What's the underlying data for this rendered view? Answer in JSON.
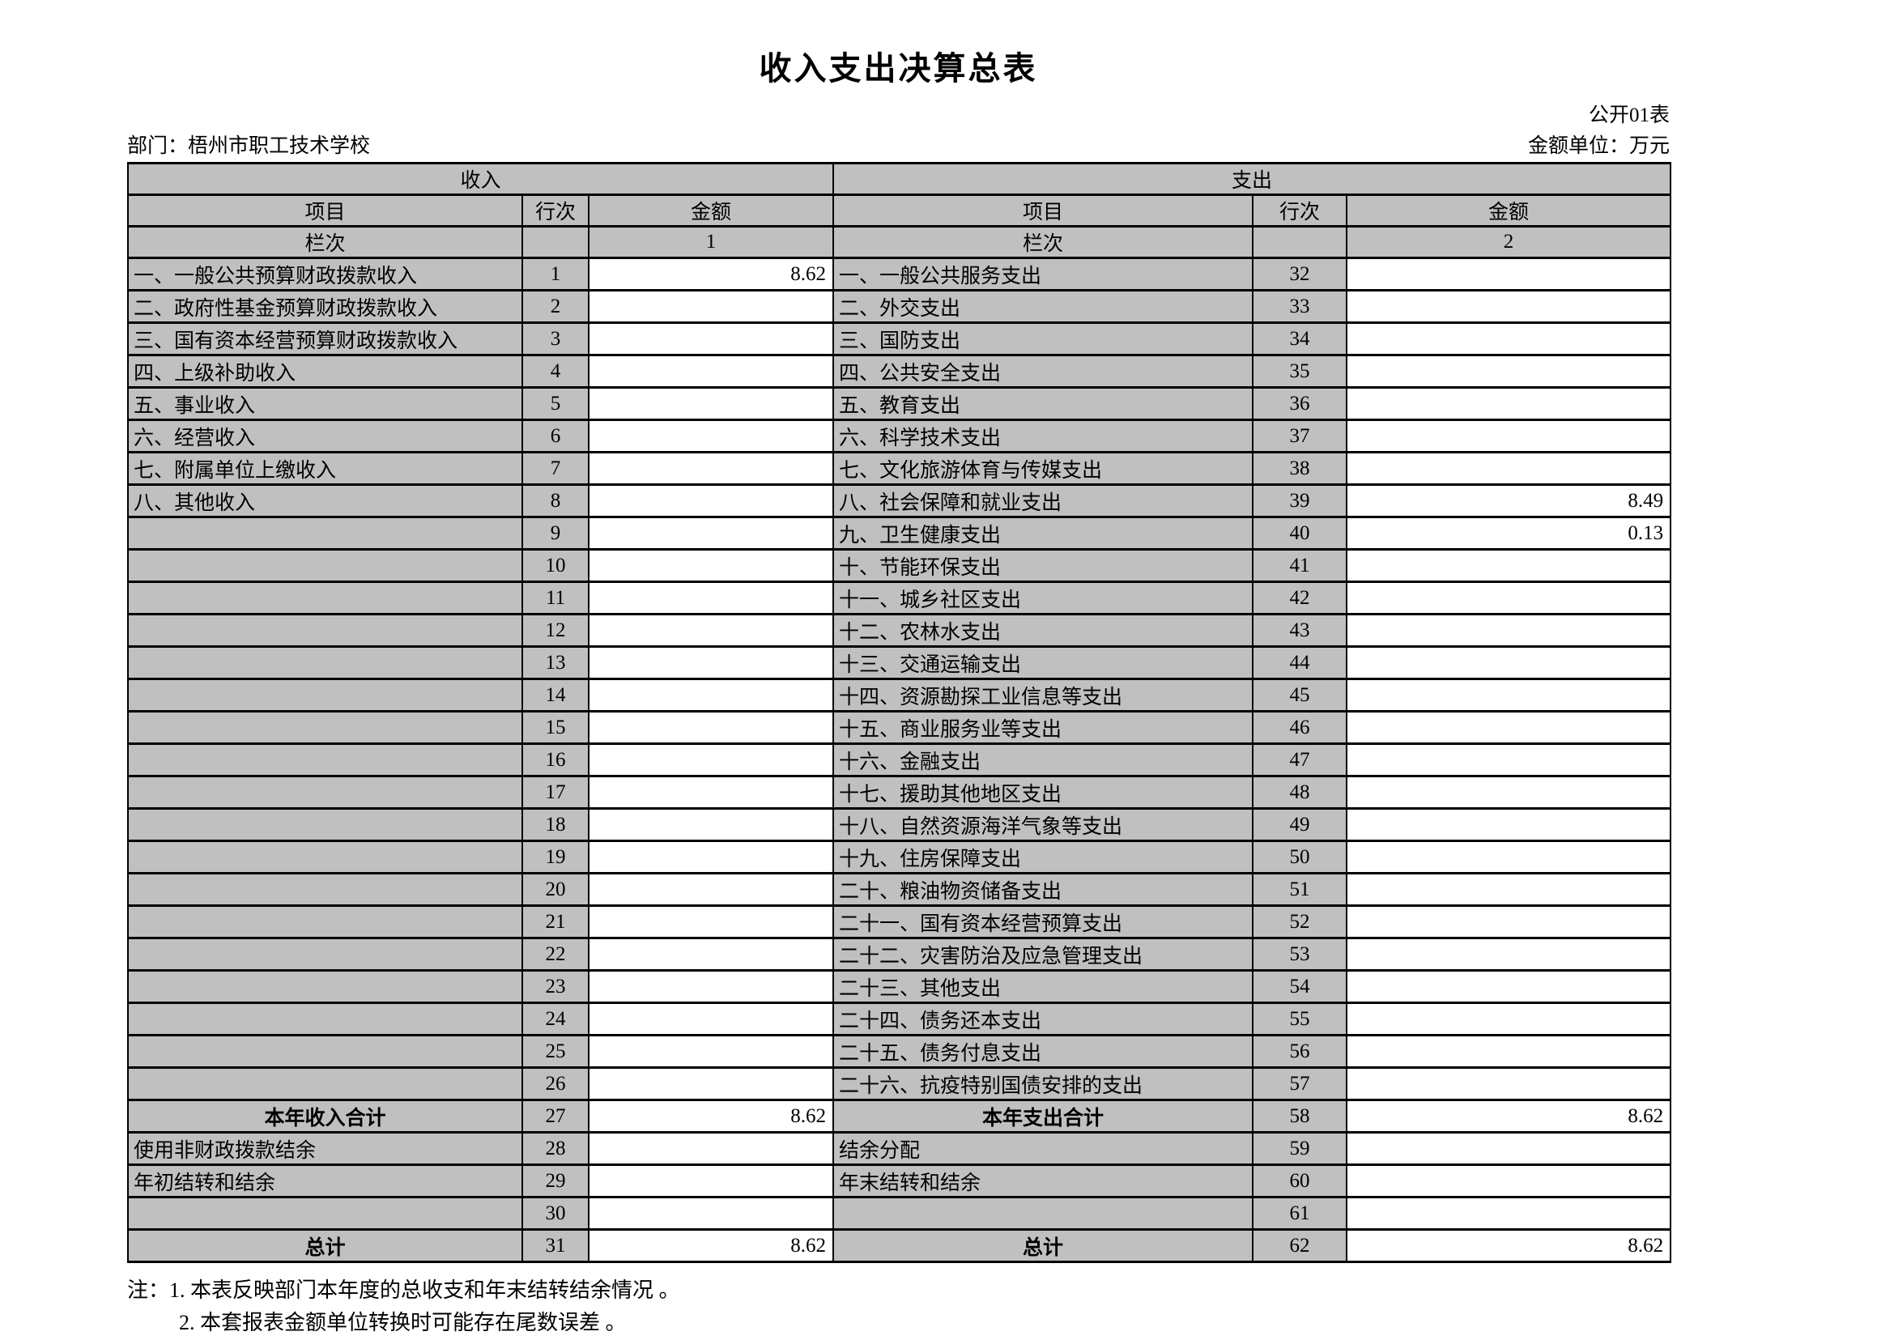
{
  "page": {
    "title": "收入支出决算总表",
    "table_code": "公开01表",
    "department_label": "部门：梧州市职工技术学校",
    "unit_label": "金额单位：万元",
    "note1": "注：1. 本表反映部门本年度的总收支和年末结转结余情况 。",
    "note2": "2. 本套报表金额单位转换时可能存在尾数误差 。"
  },
  "colors": {
    "cell_gray": "#c0c0c0",
    "border": "#000000",
    "amount_bg": "#ffffff"
  },
  "table": {
    "sections": {
      "income": "收入",
      "expense": "支出"
    },
    "columns": {
      "item": "项目",
      "line_no": "行次",
      "amount": "金额"
    },
    "col_index_label": "栏次",
    "income_col_index": "1",
    "expense_col_index": "2",
    "rows": [
      {
        "income_item": "一、一般公共预算财政拨款收入",
        "income_line": "1",
        "income_amount": "8.62",
        "expense_item": "一、一般公共服务支出",
        "expense_line": "32",
        "expense_amount": "",
        "emphasis": false
      },
      {
        "income_item": "二、政府性基金预算财政拨款收入",
        "income_line": "2",
        "income_amount": "",
        "expense_item": "二、外交支出",
        "expense_line": "33",
        "expense_amount": "",
        "emphasis": false
      },
      {
        "income_item": "三、国有资本经营预算财政拨款收入",
        "income_line": "3",
        "income_amount": "",
        "expense_item": "三、国防支出",
        "expense_line": "34",
        "expense_amount": "",
        "emphasis": false
      },
      {
        "income_item": "四、上级补助收入",
        "income_line": "4",
        "income_amount": "",
        "expense_item": "四、公共安全支出",
        "expense_line": "35",
        "expense_amount": "",
        "emphasis": false
      },
      {
        "income_item": "五、事业收入",
        "income_line": "5",
        "income_amount": "",
        "expense_item": "五、教育支出",
        "expense_line": "36",
        "expense_amount": "",
        "emphasis": false
      },
      {
        "income_item": "六、经营收入",
        "income_line": "6",
        "income_amount": "",
        "expense_item": "六、科学技术支出",
        "expense_line": "37",
        "expense_amount": "",
        "emphasis": false
      },
      {
        "income_item": "七、附属单位上缴收入",
        "income_line": "7",
        "income_amount": "",
        "expense_item": "七、文化旅游体育与传媒支出",
        "expense_line": "38",
        "expense_amount": "",
        "emphasis": false
      },
      {
        "income_item": "八、其他收入",
        "income_line": "8",
        "income_amount": "",
        "expense_item": "八、社会保障和就业支出",
        "expense_line": "39",
        "expense_amount": "8.49",
        "emphasis": false
      },
      {
        "income_item": "",
        "income_line": "9",
        "income_amount": "",
        "expense_item": "九、卫生健康支出",
        "expense_line": "40",
        "expense_amount": "0.13",
        "emphasis": false
      },
      {
        "income_item": "",
        "income_line": "10",
        "income_amount": "",
        "expense_item": "十、节能环保支出",
        "expense_line": "41",
        "expense_amount": "",
        "emphasis": false
      },
      {
        "income_item": "",
        "income_line": "11",
        "income_amount": "",
        "expense_item": "十一、城乡社区支出",
        "expense_line": "42",
        "expense_amount": "",
        "emphasis": false
      },
      {
        "income_item": "",
        "income_line": "12",
        "income_amount": "",
        "expense_item": "十二、农林水支出",
        "expense_line": "43",
        "expense_amount": "",
        "emphasis": false
      },
      {
        "income_item": "",
        "income_line": "13",
        "income_amount": "",
        "expense_item": "十三、交通运输支出",
        "expense_line": "44",
        "expense_amount": "",
        "emphasis": false
      },
      {
        "income_item": "",
        "income_line": "14",
        "income_amount": "",
        "expense_item": "十四、资源勘探工业信息等支出",
        "expense_line": "45",
        "expense_amount": "",
        "emphasis": false
      },
      {
        "income_item": "",
        "income_line": "15",
        "income_amount": "",
        "expense_item": "十五、商业服务业等支出",
        "expense_line": "46",
        "expense_amount": "",
        "emphasis": false
      },
      {
        "income_item": "",
        "income_line": "16",
        "income_amount": "",
        "expense_item": "十六、金融支出",
        "expense_line": "47",
        "expense_amount": "",
        "emphasis": false
      },
      {
        "income_item": "",
        "income_line": "17",
        "income_amount": "",
        "expense_item": "十七、援助其他地区支出",
        "expense_line": "48",
        "expense_amount": "",
        "emphasis": false
      },
      {
        "income_item": "",
        "income_line": "18",
        "income_amount": "",
        "expense_item": "十八、自然资源海洋气象等支出",
        "expense_line": "49",
        "expense_amount": "",
        "emphasis": false
      },
      {
        "income_item": "",
        "income_line": "19",
        "income_amount": "",
        "expense_item": "十九、住房保障支出",
        "expense_line": "50",
        "expense_amount": "",
        "emphasis": false
      },
      {
        "income_item": "",
        "income_line": "20",
        "income_amount": "",
        "expense_item": "二十、粮油物资储备支出",
        "expense_line": "51",
        "expense_amount": "",
        "emphasis": false
      },
      {
        "income_item": "",
        "income_line": "21",
        "income_amount": "",
        "expense_item": "二十一、国有资本经营预算支出",
        "expense_line": "52",
        "expense_amount": "",
        "emphasis": false
      },
      {
        "income_item": "",
        "income_line": "22",
        "income_amount": "",
        "expense_item": "二十二、灾害防治及应急管理支出",
        "expense_line": "53",
        "expense_amount": "",
        "emphasis": false
      },
      {
        "income_item": "",
        "income_line": "23",
        "income_amount": "",
        "expense_item": "二十三、其他支出",
        "expense_line": "54",
        "expense_amount": "",
        "emphasis": false
      },
      {
        "income_item": "",
        "income_line": "24",
        "income_amount": "",
        "expense_item": "二十四、债务还本支出",
        "expense_line": "55",
        "expense_amount": "",
        "emphasis": false
      },
      {
        "income_item": "",
        "income_line": "25",
        "income_amount": "",
        "expense_item": "二十五、债务付息支出",
        "expense_line": "56",
        "expense_amount": "",
        "emphasis": false
      },
      {
        "income_item": "",
        "income_line": "26",
        "income_amount": "",
        "expense_item": "二十六、抗疫特别国债安排的支出",
        "expense_line": "57",
        "expense_amount": "",
        "emphasis": false
      },
      {
        "income_item": "本年收入合计",
        "income_line": "27",
        "income_amount": "8.62",
        "expense_item": "本年支出合计",
        "expense_line": "58",
        "expense_amount": "8.62",
        "emphasis": true
      },
      {
        "income_item": "使用非财政拨款结余",
        "income_line": "28",
        "income_amount": "",
        "expense_item": "结余分配",
        "expense_line": "59",
        "expense_amount": "",
        "emphasis": false
      },
      {
        "income_item": "年初结转和结余",
        "income_line": "29",
        "income_amount": "",
        "expense_item": "年末结转和结余",
        "expense_line": "60",
        "expense_amount": "",
        "emphasis": false
      },
      {
        "income_item": "",
        "income_line": "30",
        "income_amount": "",
        "expense_item": "",
        "expense_line": "61",
        "expense_amount": "",
        "emphasis": false
      },
      {
        "income_item": "总计",
        "income_line": "31",
        "income_amount": "8.62",
        "expense_item": "总计",
        "expense_line": "62",
        "expense_amount": "8.62",
        "emphasis": true
      }
    ]
  }
}
